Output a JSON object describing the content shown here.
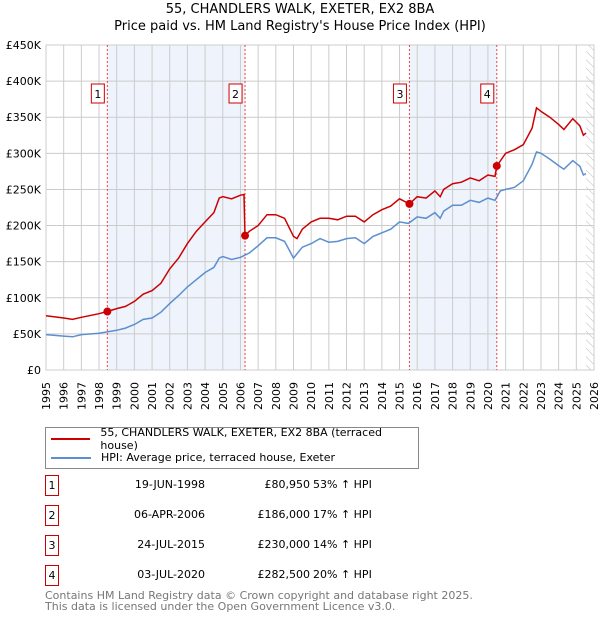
{
  "chart_data": {
    "type": "line",
    "title": "55, CHANDLERS WALK, EXETER, EX2 8BA",
    "subtitle": "Price paid vs. HM Land Registry's House Price Index (HPI)",
    "xlim": [
      1995,
      2026
    ],
    "ylim": [
      0,
      450000
    ],
    "yticks": [
      0,
      50000,
      100000,
      150000,
      200000,
      250000,
      300000,
      350000,
      400000,
      450000
    ],
    "ytick_labels": [
      "£0",
      "£50K",
      "£100K",
      "£150K",
      "£200K",
      "£250K",
      "£300K",
      "£350K",
      "£400K",
      "£450K"
    ],
    "xticks": [
      "1995",
      "1996",
      "1997",
      "1998",
      "1999",
      "2000",
      "2001",
      "2002",
      "2003",
      "2004",
      "2005",
      "2006",
      "2007",
      "2008",
      "2009",
      "2010",
      "2011",
      "2012",
      "2013",
      "2014",
      "2015",
      "2016",
      "2017",
      "2018",
      "2019",
      "2020",
      "2021",
      "2022",
      "2023",
      "2024",
      "2025",
      "2026"
    ],
    "grid": true,
    "legend_position": "below",
    "series": [
      {
        "name": "55, CHANDLERS WALK, EXETER, EX2 8BA (terraced house)",
        "color": "#cc0000",
        "x": [
          1995,
          1996,
          1996.5,
          1997,
          1998,
          1998.47,
          1999,
          1999.5,
          2000,
          2000.5,
          2001,
          2001.5,
          2002,
          2002.5,
          2003,
          2003.5,
          2004,
          2004.5,
          2004.8,
          2005,
          2005.5,
          2006,
          2006.2,
          2006.26,
          2006.5,
          2007,
          2007.5,
          2008,
          2008.5,
          2009,
          2009.2,
          2009.5,
          2010,
          2010.5,
          2011,
          2011.5,
          2012,
          2012.5,
          2013,
          2013.5,
          2014,
          2014.5,
          2015,
          2015.56,
          2016,
          2016.5,
          2017,
          2017.3,
          2017.5,
          2018,
          2018.5,
          2019,
          2019.5,
          2020,
          2020.4,
          2020.5,
          2021,
          2021.5,
          2022,
          2022.5,
          2022.75,
          2023,
          2023.5,
          2024,
          2024.3,
          2024.8,
          2025.2,
          2025.4,
          2025.55
        ],
        "y": [
          75000,
          72000,
          70000,
          73000,
          78000,
          80950,
          85000,
          88000,
          95000,
          105000,
          110000,
          120000,
          140000,
          155000,
          175000,
          192000,
          205000,
          218000,
          238000,
          240000,
          237000,
          242000,
          243000,
          186000,
          192000,
          200000,
          215000,
          215000,
          210000,
          185000,
          182000,
          195000,
          205000,
          210000,
          210000,
          208000,
          213000,
          213000,
          205000,
          215000,
          222000,
          227000,
          237000,
          230000,
          240000,
          238000,
          248000,
          240000,
          250000,
          258000,
          260000,
          266000,
          262000,
          270000,
          268000,
          282500,
          300000,
          305000,
          312000,
          335000,
          363000,
          358000,
          350000,
          340000,
          333000,
          348000,
          338000,
          325000,
          328000
        ]
      },
      {
        "name": "HPI: Average price, terraced house, Exeter",
        "color": "#5b8fd0",
        "x": [
          1995,
          1996,
          1996.5,
          1997,
          1998,
          1998.5,
          1999,
          1999.5,
          2000,
          2000.5,
          2001,
          2001.5,
          2002,
          2002.5,
          2003,
          2003.5,
          2004,
          2004.5,
          2004.8,
          2005,
          2005.5,
          2006,
          2006.5,
          2007,
          2007.5,
          2008,
          2008.5,
          2009,
          2009.5,
          2010,
          2010.5,
          2011,
          2011.5,
          2012,
          2012.5,
          2013,
          2013.5,
          2014,
          2014.5,
          2015,
          2015.5,
          2016,
          2016.5,
          2017,
          2017.3,
          2017.5,
          2018,
          2018.5,
          2019,
          2019.5,
          2020,
          2020.4,
          2020.7,
          2021,
          2021.5,
          2022,
          2022.5,
          2022.75,
          2023,
          2023.5,
          2024,
          2024.3,
          2024.8,
          2025.2,
          2025.4,
          2025.55
        ],
        "y": [
          49000,
          47000,
          46000,
          49000,
          51000,
          53000,
          55000,
          58000,
          63000,
          70000,
          72000,
          80000,
          92000,
          103000,
          115000,
          125000,
          135000,
          142000,
          155000,
          157000,
          153000,
          156000,
          162000,
          172000,
          183000,
          183000,
          178000,
          155000,
          170000,
          175000,
          182000,
          177000,
          178000,
          182000,
          183000,
          175000,
          185000,
          190000,
          195000,
          205000,
          203000,
          212000,
          210000,
          218000,
          210000,
          220000,
          228000,
          228000,
          235000,
          232000,
          238000,
          235000,
          248000,
          250000,
          253000,
          262000,
          285000,
          302000,
          300000,
          292000,
          283000,
          278000,
          290000,
          282000,
          270000,
          272000
        ]
      }
    ],
    "sales": [
      {
        "label": "1",
        "x": 1998.47,
        "price": 80950
      },
      {
        "label": "2",
        "x": 2006.26,
        "price": 186000
      },
      {
        "label": "3",
        "x": 2015.56,
        "price": 230000
      },
      {
        "label": "4",
        "x": 2020.5,
        "price": 282500
      }
    ],
    "shaded_ranges": [
      [
        1998.47,
        2006.26
      ],
      [
        2015.56,
        2020.5
      ]
    ],
    "forecast_from": 2025.55
  },
  "legend": {
    "property": "55, CHANDLERS WALK, EXETER, EX2 8BA (terraced house)",
    "hpi": "HPI: Average price, terraced house, Exeter"
  },
  "sales_table": [
    {
      "num": "1",
      "date": "19-JUN-1998",
      "price": "£80,950",
      "hpi": "53% ↑ HPI"
    },
    {
      "num": "2",
      "date": "06-APR-2006",
      "price": "£186,000",
      "hpi": "17% ↑ HPI"
    },
    {
      "num": "3",
      "date": "24-JUL-2015",
      "price": "£230,000",
      "hpi": "14% ↑ HPI"
    },
    {
      "num": "4",
      "date": "03-JUL-2020",
      "price": "£282,500",
      "hpi": "20% ↑ HPI"
    }
  ],
  "footer": {
    "line1": "Contains HM Land Registry data © Crown copyright and database right 2025.",
    "line2": "This data is licensed under the Open Government Licence v3.0."
  }
}
